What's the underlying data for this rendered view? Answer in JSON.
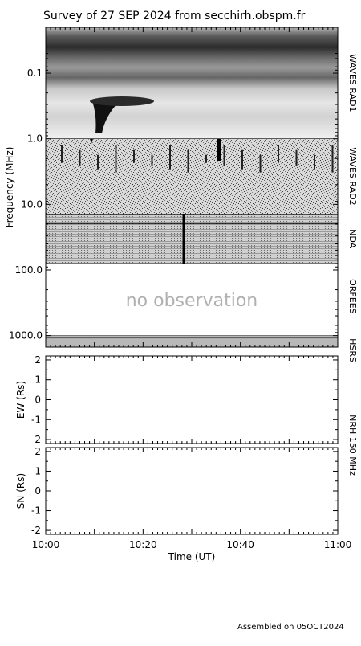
{
  "title": "Survey of 27 SEP 2024 from secchirh.obspm.fr",
  "footer": "Assembled on 05OCT2024",
  "chart_data": [
    {
      "type": "heatmap",
      "ylabel": "Frequency (MHz)",
      "yscale": "log",
      "yticks": [
        "0.1",
        "1.0",
        "10.0",
        "100.0",
        "1000.0"
      ],
      "ytick_values": [
        0.1,
        1.0,
        10.0,
        100.0,
        1000.0
      ],
      "ylim": [
        0.02,
        1500
      ],
      "inverted_y": true,
      "bands": [
        {
          "label": "WAVES RAD1",
          "range_mhz": [
            0.02,
            1.0
          ]
        },
        {
          "label": "WAVES RAD2",
          "range_mhz": [
            1.0,
            14.0
          ]
        },
        {
          "label": "NDA",
          "range_mhz": [
            14.0,
            80.0
          ]
        },
        {
          "label": "ORFEES",
          "range_mhz": [
            80.0,
            1000.0
          ]
        },
        {
          "label": "HSRS",
          "range_mhz": [
            1000.0,
            1500.0
          ]
        }
      ],
      "annotation": "no observation"
    },
    {
      "type": "line",
      "ylabel": "EW (Rs)",
      "yticks": [
        "2",
        "1",
        "0",
        "-1",
        "-2"
      ],
      "ytick_values": [
        2,
        1,
        0,
        -1,
        -2
      ],
      "ylim": [
        -2.2,
        2.2
      ],
      "series": []
    },
    {
      "type": "line",
      "ylabel": "SN (Rs)",
      "yticks": [
        "2",
        "1",
        "0",
        "-1",
        "-2"
      ],
      "ytick_values": [
        2,
        1,
        0,
        -1,
        -2
      ],
      "ylim": [
        -2.2,
        2.2
      ],
      "series": []
    }
  ],
  "nrh_label": "NRH 150 MHz",
  "time_axis": {
    "xlabel": "Time (UT)",
    "ticks": [
      "10:00",
      "10:20",
      "10:40",
      "11:00"
    ],
    "tick_minutes": [
      0,
      20,
      40,
      60
    ],
    "xlim_minutes": [
      0,
      60
    ]
  }
}
